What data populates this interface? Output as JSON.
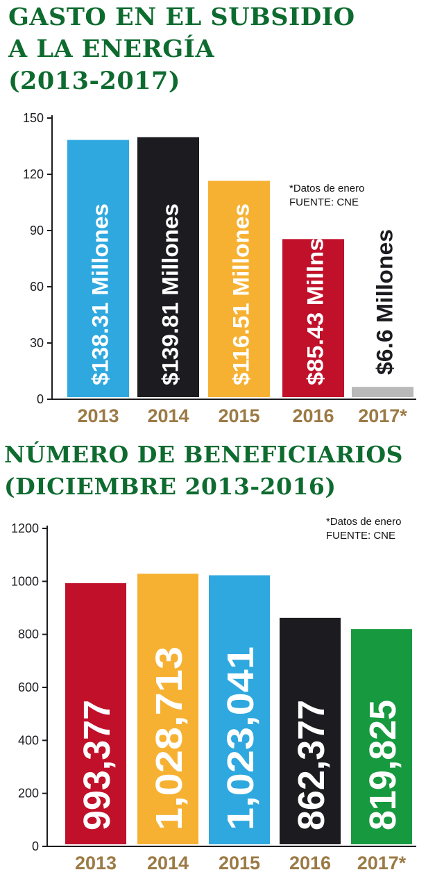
{
  "chart1": {
    "title_lines": [
      "GASTO EN EL SUBSIDIO",
      "A LA ENERGÍA",
      "(2013-2017)"
    ],
    "note_lines": [
      "*Datos de enero",
      "FUENTE: CNE"
    ]
  },
  "chart2": {
    "title_lines": [
      "NÚMERO DE BENEFICIARIOS",
      "(DICIEMBRE 2013-2016)"
    ],
    "note_lines": [
      "*Datos de enero",
      "FUENTE: CNE"
    ]
  },
  "chart_data": [
    {
      "type": "bar",
      "title": "GASTO EN EL SUBSIDIO A LA ENERGÍA (2013-2017)",
      "categories": [
        "2013",
        "2014",
        "2015",
        "2016",
        "2017*"
      ],
      "values": [
        138.31,
        139.81,
        116.51,
        85.43,
        6.6
      ],
      "data_labels": [
        "$138.31 Millones",
        "$139.81 Millones",
        "$116.51 Millones",
        "$85.43 Millns.",
        "$6.6 Millones"
      ],
      "colors": [
        "#2ea8df",
        "#1c1b1f",
        "#f6b133",
        "#c0102a",
        "#b9b9b9"
      ],
      "label_colors": [
        "#ffffff",
        "#ffffff",
        "#ffffff",
        "#ffffff",
        "#1c1b1f"
      ],
      "yticks": [
        0,
        30,
        60,
        90,
        120,
        150
      ],
      "ylim": [
        0,
        150
      ],
      "grid": false,
      "tick_label_color": "#9b7a45"
    },
    {
      "type": "bar",
      "title": "NÚMERO DE BENEFICIARIOS (DICIEMBRE 2013-2016)",
      "categories": [
        "2013",
        "2014",
        "2015",
        "2016",
        "2017*"
      ],
      "values": [
        993377,
        1028713,
        1023041,
        862377,
        819825
      ],
      "data_labels": [
        "993,377",
        "1,028,713",
        "1,023,041",
        "862,377",
        "819,825"
      ],
      "colors": [
        "#c0102a",
        "#f6b133",
        "#2ea8df",
        "#1c1b1f",
        "#179a3f"
      ],
      "label_colors": [
        "#ffffff",
        "#ffffff",
        "#ffffff",
        "#ffffff",
        "#ffffff"
      ],
      "yticks": [
        0,
        200,
        400,
        600,
        800,
        1000,
        1200
      ],
      "ylim": [
        0,
        1200
      ],
      "value_scale": 1000,
      "grid": false,
      "tick_label_color": "#9b7a45"
    }
  ]
}
